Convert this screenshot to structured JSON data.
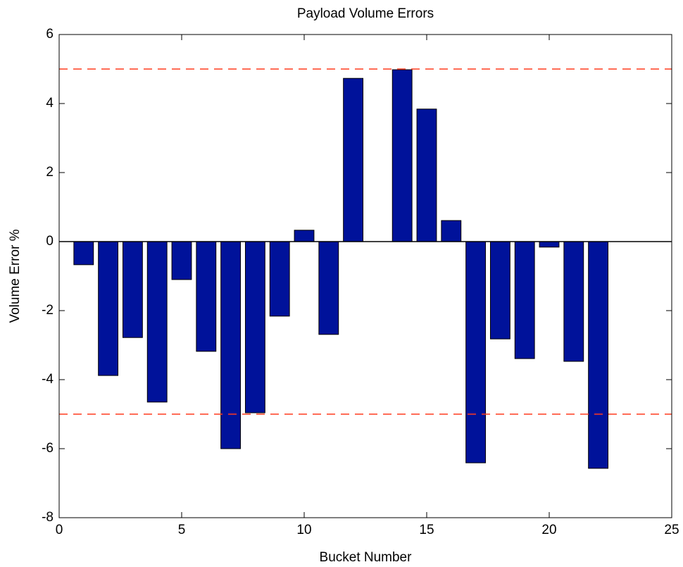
{
  "chart_data": {
    "type": "bar",
    "title": "Payload Volume Errors",
    "x_label": "Bucket Number",
    "y_label": "Volume Error %",
    "x": [
      1,
      2,
      3,
      4,
      5,
      6,
      7,
      8,
      9,
      10,
      11,
      12,
      13,
      14,
      15,
      16,
      17,
      18,
      19,
      20,
      21,
      22
    ],
    "values": [
      -0.67,
      -3.88,
      -2.78,
      -4.65,
      -1.1,
      -3.18,
      -6.0,
      -4.96,
      -2.16,
      0.33,
      -2.69,
      4.73,
      0,
      4.98,
      3.84,
      0.61,
      -6.41,
      -2.82,
      -3.39,
      -0.16,
      -3.47,
      -6.57
    ],
    "color": "#00129a",
    "xlim": [
      0,
      25
    ],
    "xticks": [
      0,
      5,
      10,
      15,
      20,
      25
    ],
    "ylim": [
      -8,
      6
    ],
    "yticks": [
      -8,
      -6,
      -4,
      -2,
      0,
      2,
      4,
      6
    ],
    "hlines": [
      {
        "value": 5,
        "color": "#ff3b1f"
      },
      {
        "value": -5,
        "color": "#ff3b1f"
      }
    ],
    "grid": false
  }
}
